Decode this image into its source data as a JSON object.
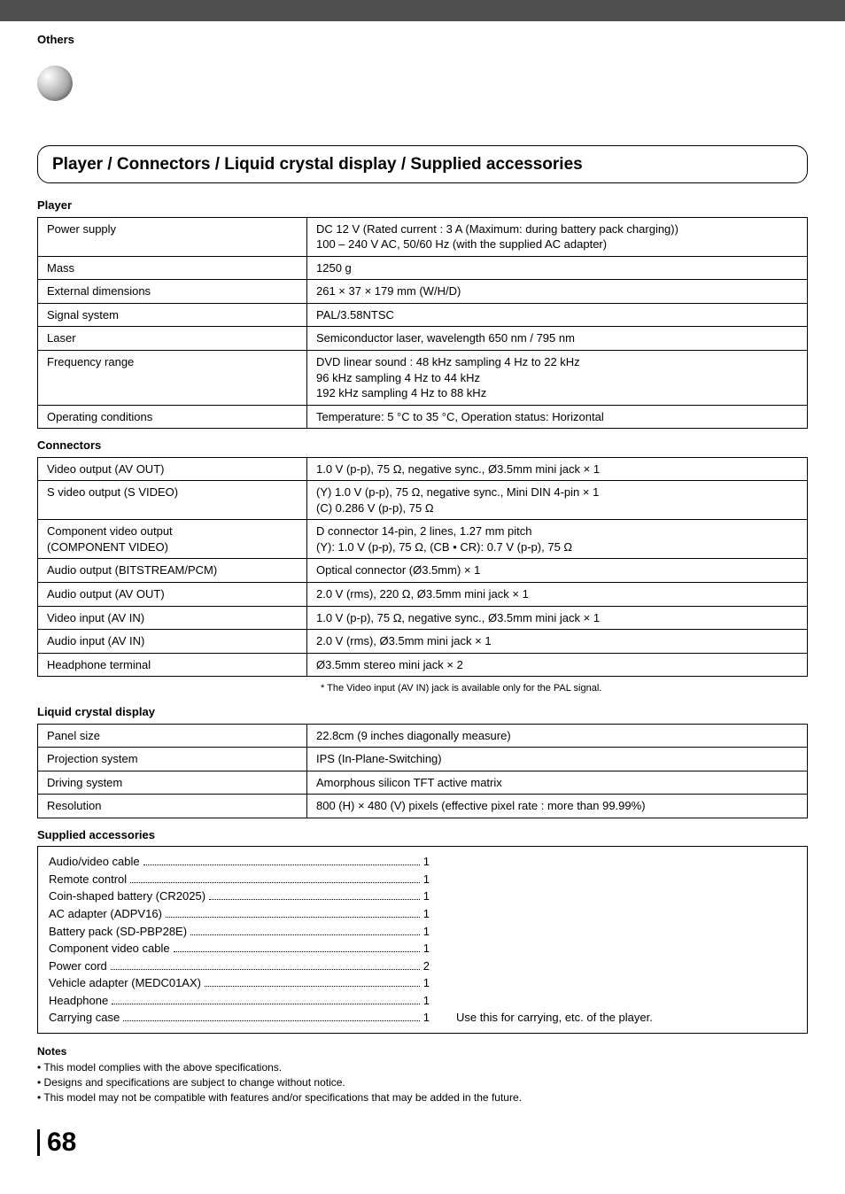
{
  "page": {
    "section_label": "Others",
    "title": "Player / Connectors / Liquid crystal display / Supplied accessories",
    "page_number": "68",
    "colors": {
      "top_band": "#4f4f4f",
      "text": "#000000",
      "background": "#ffffff",
      "border": "#000000"
    }
  },
  "player": {
    "heading": "Player",
    "rows": [
      {
        "k": "Power supply",
        "v": "DC 12 V (Rated current : 3 A (Maximum: during battery pack charging))\n100 – 240 V AC, 50/60 Hz (with the supplied AC adapter)"
      },
      {
        "k": "Mass",
        "v": "1250 g"
      },
      {
        "k": "External dimensions",
        "v": "261 × 37 × 179 mm (W/H/D)"
      },
      {
        "k": "Signal system",
        "v": "PAL/3.58NTSC"
      },
      {
        "k": "Laser",
        "v": "Semiconductor laser, wavelength 650 nm / 795 nm"
      },
      {
        "k": "Frequency range",
        "v": "DVD linear sound :  48 kHz sampling 4 Hz to 22 kHz\n                                 96 kHz sampling 4 Hz to 44 kHz\n                                 192 kHz sampling 4 Hz to 88 kHz"
      },
      {
        "k": "Operating conditions",
        "v": "Temperature: 5 °C to 35 °C, Operation status: Horizontal"
      }
    ]
  },
  "connectors": {
    "heading": "Connectors",
    "rows": [
      {
        "k": "Video output (AV OUT)",
        "v": "1.0 V (p-p), 75 Ω, negative sync., Ø3.5mm mini jack × 1"
      },
      {
        "k": "S video output (S VIDEO)",
        "v": "(Y) 1.0 V (p-p), 75 Ω, negative sync., Mini DIN 4-pin × 1\n(C) 0.286 V (p-p), 75 Ω"
      },
      {
        "k": "Component video output\n(COMPONENT VIDEO)",
        "v": "D connector 14-pin, 2 lines, 1.27 mm pitch\n(Y): 1.0 V (p-p), 75 Ω,  (CB • CR): 0.7 V (p-p), 75 Ω"
      },
      {
        "k": "Audio output (BITSTREAM/PCM)",
        "v": "Optical connector (Ø3.5mm) × 1"
      },
      {
        "k": "Audio output (AV OUT)",
        "v": "2.0 V (rms), 220 Ω, Ø3.5mm mini jack × 1"
      },
      {
        "k": "Video input (AV IN)",
        "v": "1.0 V (p-p), 75 Ω, negative sync., Ø3.5mm mini jack × 1"
      },
      {
        "k": "Audio input (AV IN)",
        "v": "2.0 V (rms), Ø3.5mm mini jack × 1"
      },
      {
        "k": "Headphone terminal",
        "v": "Ø3.5mm stereo mini jack × 2"
      }
    ],
    "footnote": "* The Video input (AV IN) jack is available only for the PAL signal."
  },
  "lcd": {
    "heading": "Liquid crystal display",
    "rows": [
      {
        "k": "Panel size",
        "v": "22.8cm (9 inches diagonally measure)"
      },
      {
        "k": "Projection system",
        "v": "IPS (In-Plane-Switching)"
      },
      {
        "k": "Driving system",
        "v": "Amorphous silicon TFT active matrix"
      },
      {
        "k": "Resolution",
        "v": "800 (H) × 480 (V) pixels (effective pixel rate : more than 99.99%)"
      }
    ]
  },
  "accessories": {
    "heading": "Supplied accessories",
    "rows": [
      {
        "label": "Audio/video cable",
        "qty": "1"
      },
      {
        "label": "Remote control",
        "qty": "1"
      },
      {
        "label": "Coin-shaped battery (CR2025)",
        "qty": "1"
      },
      {
        "label": "AC adapter (ADPV16)",
        "qty": "1"
      },
      {
        "label": "Battery pack (SD-PBP28E)",
        "qty": "1"
      },
      {
        "label": "Component video cable",
        "qty": "1"
      },
      {
        "label": "Power cord",
        "qty": "2"
      },
      {
        "label": "Vehicle adapter (MEDC01AX)",
        "qty": "1"
      },
      {
        "label": "Headphone",
        "qty": "1"
      },
      {
        "label": "Carrying case",
        "qty": "1",
        "note": "Use this for carrying, etc. of the player."
      }
    ]
  },
  "notes": {
    "heading": "Notes",
    "items": [
      "This model complies with the above specifications.",
      "Designs and specifications are subject to change without notice.",
      "This model may not be compatible with features and/or specifications that may be added in the future."
    ]
  }
}
